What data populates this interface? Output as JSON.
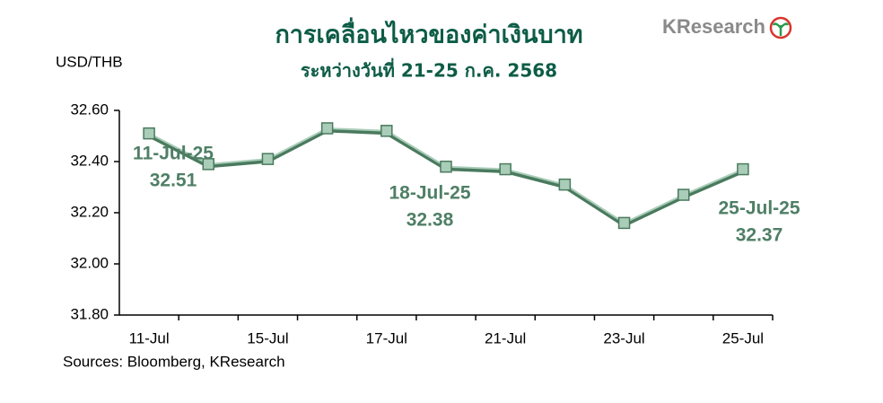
{
  "logo": "KResearch",
  "chart_data": {
    "type": "line",
    "title": "การเคลื่อนไหวของค่าเงินบาท",
    "subtitle": "ระหว่างวันที่ 21-25 ก.ค. 2568",
    "y_label": "USD/THB",
    "source": "Sources: Bloomberg, KResearch",
    "categories": [
      "11-Jul",
      null,
      "15-Jul",
      null,
      "17-Jul",
      null,
      "21-Jul",
      null,
      "23-Jul",
      null,
      "25-Jul"
    ],
    "values": [
      32.51,
      32.39,
      32.41,
      32.53,
      32.52,
      32.38,
      32.37,
      32.31,
      32.16,
      32.27,
      32.37
    ],
    "color": "#4a7a5e",
    "marker_color": "#a9cdb8",
    "ylim": [
      31.8,
      32.6
    ],
    "yticks": [
      {
        "value": 31.8,
        "label": "31.80"
      },
      {
        "value": 32.0,
        "label": "32.00"
      },
      {
        "value": 32.2,
        "label": "32.20"
      },
      {
        "value": 32.4,
        "label": "32.40"
      },
      {
        "value": 32.6,
        "label": "32.60"
      }
    ],
    "annotations": [
      {
        "date": "11-Jul-25",
        "value": "32.51"
      },
      {
        "date": "18-Jul-25",
        "value": "32.38"
      },
      {
        "date": "25-Jul-25",
        "value": "32.37"
      }
    ]
  }
}
